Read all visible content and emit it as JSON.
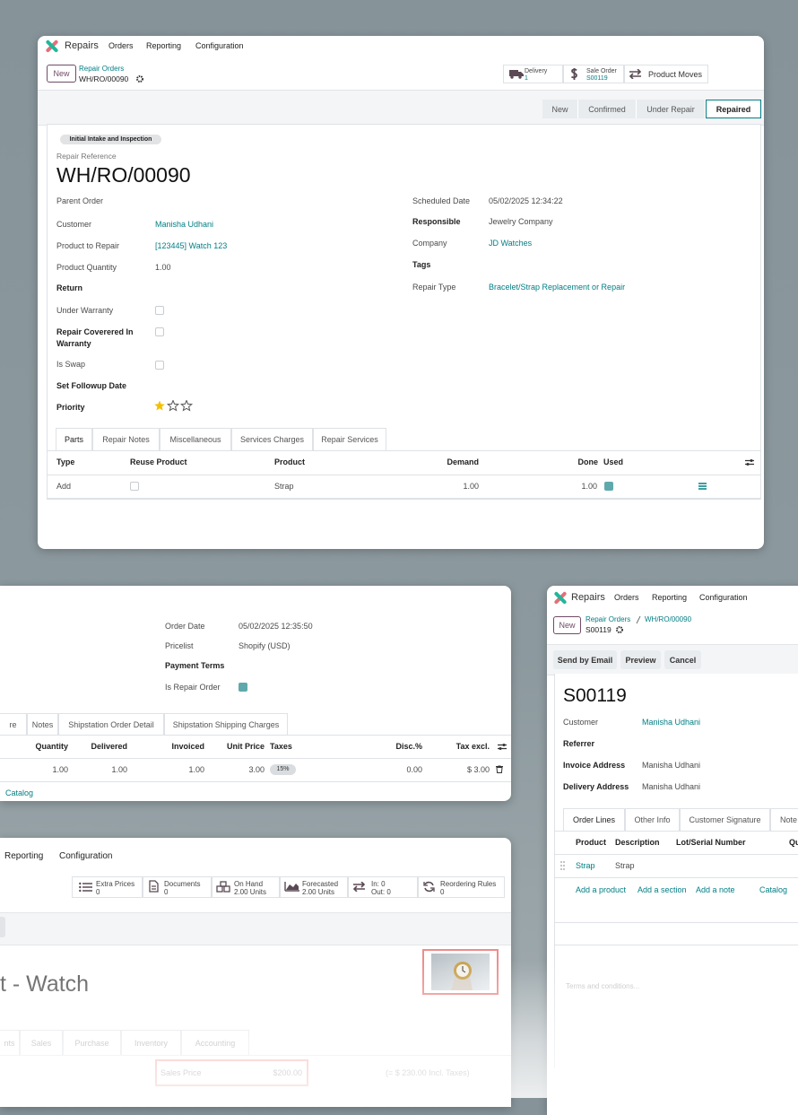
{
  "main": {
    "app": "Repairs",
    "menu": [
      "Orders",
      "Reporting",
      "Configuration"
    ],
    "new_button": "New",
    "breadcrumb": "Repair Orders",
    "record": "WH/RO/00090",
    "smart_buttons": [
      {
        "label": "Delivery",
        "value": "1"
      },
      {
        "label": "Sale Order",
        "value": "S00119"
      },
      {
        "label": "Product Moves"
      }
    ],
    "stages": [
      "New",
      "Confirmed",
      "Under Repair",
      "Repaired"
    ],
    "badge": "Initial Intake and Inspection",
    "reference_label": "Repair Reference",
    "reference": "WH/RO/00090",
    "fields_left": [
      {
        "label": "Parent Order"
      },
      {
        "label": "Customer",
        "value": "Manisha Udhani"
      },
      {
        "label": "Product to Repair",
        "value": "[123445] Watch 123"
      },
      {
        "label": "Product Quantity",
        "value": "1.00"
      },
      {
        "label": "Return"
      },
      {
        "label": "Under Warranty"
      },
      {
        "label": "Repair Coverered In Warranty"
      },
      {
        "label": "Is Swap"
      },
      {
        "label": "Set Followup Date"
      },
      {
        "label": "Priority"
      }
    ],
    "fields_right": [
      {
        "label": "Scheduled Date",
        "value": "05/02/2025 12:34:22"
      },
      {
        "label": "Responsible",
        "value": "Jewelry Company"
      },
      {
        "label": "Company",
        "value": "JD Watches"
      },
      {
        "label": "Tags"
      },
      {
        "label": "Repair Type",
        "value": "Bracelet/Strap Replacement or Repair"
      }
    ],
    "tabs": [
      "Parts",
      "Repair Notes",
      "Miscellaneous",
      "Services Charges",
      "Repair Services"
    ],
    "columns": [
      "Type",
      "Reuse Product",
      "Product",
      "Demand",
      "Done",
      "Used"
    ],
    "rows": [
      {
        "type": "Add",
        "product": "Strap",
        "demand": "1.00",
        "done": "1.00"
      }
    ]
  },
  "sale_order_details": {
    "fields": [
      {
        "label": "Order Date",
        "value": "05/02/2025 12:35:50"
      },
      {
        "label": "Pricelist",
        "value": "Shopify (USD)"
      },
      {
        "label": "Payment Terms"
      },
      {
        "label": "Is Repair Order"
      }
    ],
    "tabs": [
      "re",
      "Notes",
      "Shipstation Order Detail",
      "Shipstation Shipping Charges"
    ],
    "columns": [
      "Quantity",
      "Delivered",
      "Invoiced",
      "Unit Price",
      "Taxes",
      "Disc.%",
      "Tax excl."
    ],
    "rows": [
      {
        "quantity": "1.00",
        "delivered": "1.00",
        "invoiced": "1.00",
        "unit_price": "3.00",
        "taxes": "15%",
        "discount": "0.00",
        "tax_excl": "$ 3.00"
      }
    ],
    "catalog": "Catalog"
  },
  "sale_order": {
    "app": "Repairs",
    "menu": [
      "Orders",
      "Reporting",
      "Configuration"
    ],
    "new_button": "New",
    "breadcrumb": [
      "Repair Orders",
      "WH/RO/00090"
    ],
    "record": "S00119",
    "buttons": [
      "Send by Email",
      "Preview",
      "Cancel"
    ],
    "title": "S00119",
    "fields": [
      {
        "label": "Customer",
        "value": "Manisha Udhani"
      },
      {
        "label": "Referrer"
      },
      {
        "label": "Invoice Address",
        "value": "Manisha Udhani"
      },
      {
        "label": "Delivery Address",
        "value": "Manisha Udhani"
      }
    ],
    "tabs": [
      "Order Lines",
      "Other Info",
      "Customer Signature",
      "Note"
    ],
    "columns": [
      "Product",
      "Description",
      "Lot/Serial Number",
      "Qu"
    ],
    "rows": [
      {
        "product": "Strap",
        "description": "Strap"
      }
    ],
    "links": [
      "Add a product",
      "Add a section",
      "Add a note",
      "Catalog"
    ],
    "terms": "Terms and conditions..."
  },
  "product": {
    "menu": [
      "Reporting",
      "Configuration"
    ],
    "smart_buttons": [
      {
        "label": "Extra Prices",
        "value": "0"
      },
      {
        "label": "Documents",
        "value": "0"
      },
      {
        "label": "On Hand",
        "value": "2.00 Units"
      },
      {
        "label": "Forecasted",
        "value": "2.00 Units"
      },
      {
        "label": "In: 0",
        "value": "Out: 0"
      },
      {
        "label": "Reordering Rules",
        "value": "0"
      }
    ],
    "title": "t - Watch",
    "tabs": [
      "nts",
      "Sales",
      "Purchase",
      "Inventory",
      "Accounting"
    ],
    "sales_price_label": "Sales Price",
    "sales_price": "$200.00",
    "incl_taxes": "(= $ 230.00 Incl. Taxes)"
  }
}
